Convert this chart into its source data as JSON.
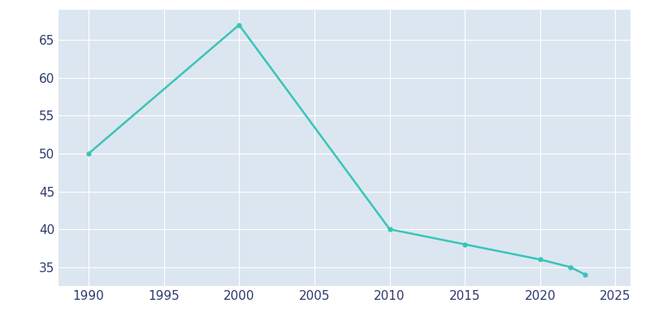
{
  "years": [
    1990,
    2000,
    2010,
    2015,
    2020,
    2022,
    2023
  ],
  "population": [
    50,
    67,
    40,
    38,
    36,
    35,
    34
  ],
  "line_color": "#38c5b8",
  "marker": "o",
  "marker_size": 3.5,
  "line_width": 1.8,
  "figure_bg_color": "#ffffff",
  "plot_bg_color": "#dce6f0",
  "grid_color": "#ffffff",
  "tick_label_color": "#2e3a6e",
  "xlim": [
    1988,
    2026
  ],
  "ylim": [
    32.5,
    69
  ],
  "yticks": [
    35,
    40,
    45,
    50,
    55,
    60,
    65
  ],
  "xticks": [
    1990,
    1995,
    2000,
    2005,
    2010,
    2015,
    2020,
    2025
  ],
  "tick_fontsize": 11
}
